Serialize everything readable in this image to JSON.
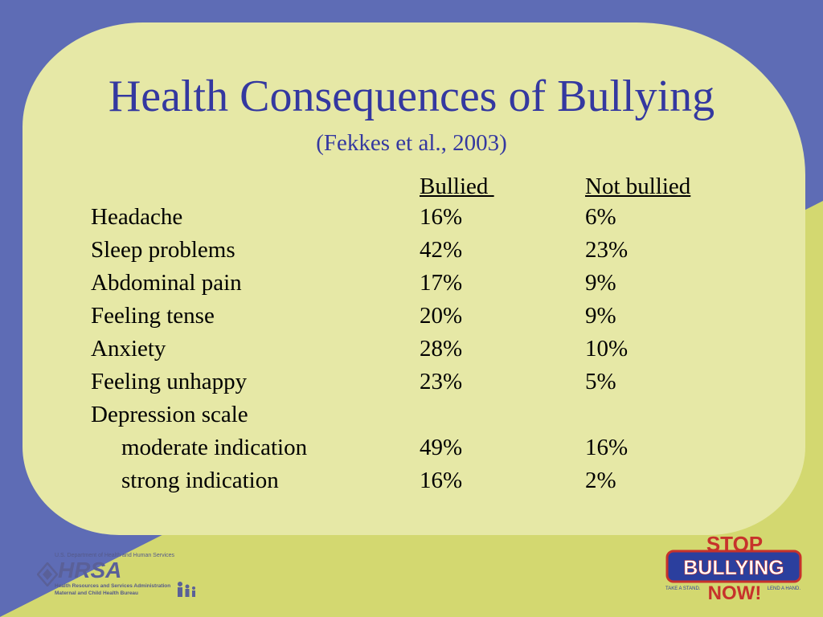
{
  "title": "Health Consequences of Bullying",
  "subtitle": "(Fekkes et al., 2003)",
  "columns": {
    "bullied": "Bullied ",
    "not_bullied": "Not bullied"
  },
  "rows": [
    {
      "label": "Headache",
      "bullied": "16%",
      "not_bullied": "6%"
    },
    {
      "label": "Sleep problems",
      "bullied": "42%",
      "not_bullied": "23%"
    },
    {
      "label": "Abdominal pain",
      "bullied": "17%",
      "not_bullied": "9%"
    },
    {
      "label": "Feeling tense",
      "bullied": "20%",
      "not_bullied": "9%"
    },
    {
      "label": "Anxiety",
      "bullied": "28%",
      "not_bullied": "10%"
    },
    {
      "label": "Feeling unhappy",
      "bullied": "23%",
      "not_bullied": "5%"
    },
    {
      "label": "Depression scale",
      "bullied": "",
      "not_bullied": ""
    },
    {
      "label": "moderate indication",
      "bullied": "49%",
      "not_bullied": "16%"
    },
    {
      "label": "strong indication",
      "bullied": "16%",
      "not_bullied": "2%"
    }
  ],
  "logos": {
    "hrsa": {
      "department": "U.S. Department of Health and Human Services",
      "acronym": "HRSA",
      "line1": "Health Resources and Services Administration",
      "line2": "Maternal and Child Health Bureau"
    },
    "stop_bullying": {
      "top": "STOP",
      "middle": "BULLYING",
      "bottom": "NOW!",
      "left_tag": "TAKE A STAND.",
      "right_tag": "LEND A HAND."
    }
  },
  "colors": {
    "background_olive": "#d3d870",
    "band_blue": "#5e6cb5",
    "panel": "#e6e8a6",
    "title_blue": "#3438a0"
  }
}
